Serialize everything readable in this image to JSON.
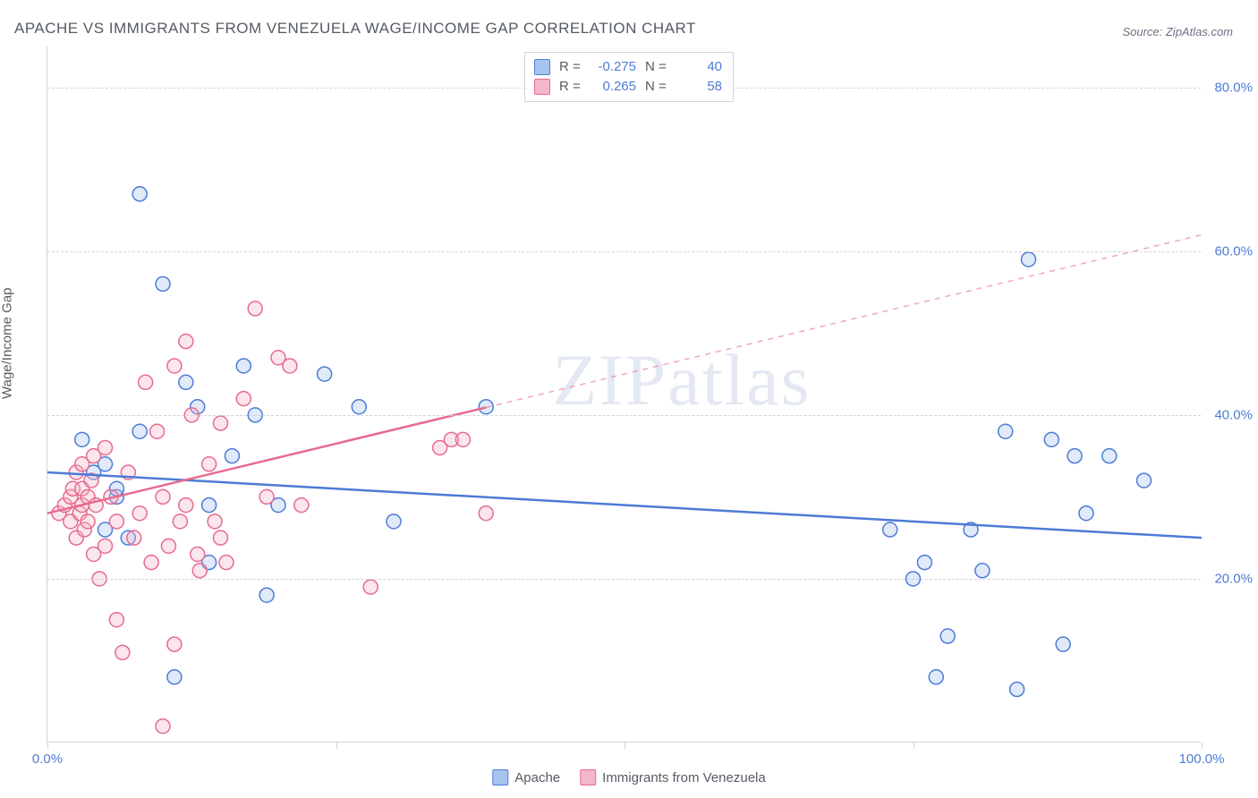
{
  "title": "APACHE VS IMMIGRANTS FROM VENEZUELA WAGE/INCOME GAP CORRELATION CHART",
  "source": "Source: ZipAtlas.com",
  "ylabel": "Wage/Income Gap",
  "watermark": "ZIPatlas",
  "chart": {
    "type": "scatter",
    "background_color": "#ffffff",
    "grid_color": "#d0d5db",
    "xlim": [
      0,
      100
    ],
    "ylim": [
      0,
      85
    ],
    "y_ticks": [
      20,
      40,
      60,
      80
    ],
    "x_ticks": [
      0,
      25,
      50,
      75,
      100
    ],
    "x_min_label": "0.0%",
    "x_max_label": "100.0%",
    "marker_radius": 8,
    "marker_stroke_width": 1.5,
    "marker_fill_opacity": 0.35,
    "trend_stroke_width": 2.5,
    "series": [
      {
        "name": "Apache",
        "color_stroke": "#4d7bd6",
        "color_fill": "#a7c4ef",
        "r_value": "-0.275",
        "n_value": "40",
        "trend": {
          "y_at_x0": 33,
          "y_at_x100": 25,
          "solid_until_x": 100
        },
        "points": [
          [
            3,
            37
          ],
          [
            4,
            33
          ],
          [
            5,
            34
          ],
          [
            5,
            26
          ],
          [
            6,
            30
          ],
          [
            6,
            31
          ],
          [
            7,
            25
          ],
          [
            8,
            38
          ],
          [
            8,
            67
          ],
          [
            10,
            56
          ],
          [
            11,
            8
          ],
          [
            12,
            44
          ],
          [
            13,
            41
          ],
          [
            14,
            22
          ],
          [
            14,
            29
          ],
          [
            16,
            35
          ],
          [
            17,
            46
          ],
          [
            18,
            40
          ],
          [
            19,
            18
          ],
          [
            20,
            29
          ],
          [
            24,
            45
          ],
          [
            27,
            41
          ],
          [
            30,
            27
          ],
          [
            38,
            41
          ],
          [
            73,
            26
          ],
          [
            75,
            20
          ],
          [
            76,
            22
          ],
          [
            77,
            8
          ],
          [
            78,
            13
          ],
          [
            80,
            26
          ],
          [
            81,
            21
          ],
          [
            83,
            38
          ],
          [
            84,
            6.5
          ],
          [
            85,
            59
          ],
          [
            87,
            37
          ],
          [
            88,
            12
          ],
          [
            89,
            35
          ],
          [
            90,
            28
          ],
          [
            92,
            35
          ],
          [
            95,
            32
          ]
        ]
      },
      {
        "name": "Immigrants from Venezuela",
        "color_stroke": "#e76a8f",
        "color_fill": "#f4b6c9",
        "r_value": "0.265",
        "n_value": "58",
        "trend": {
          "y_at_x0": 28,
          "y_at_x100": 62,
          "solid_until_x": 38
        },
        "points": [
          [
            1,
            28
          ],
          [
            1.5,
            29
          ],
          [
            2,
            30
          ],
          [
            2,
            27
          ],
          [
            2.2,
            31
          ],
          [
            2.5,
            25
          ],
          [
            2.5,
            33
          ],
          [
            2.8,
            28
          ],
          [
            3,
            29
          ],
          [
            3,
            34
          ],
          [
            3,
            31
          ],
          [
            3.2,
            26
          ],
          [
            3.5,
            30
          ],
          [
            3.5,
            27
          ],
          [
            3.8,
            32
          ],
          [
            4,
            35
          ],
          [
            4,
            23
          ],
          [
            4.2,
            29
          ],
          [
            4.5,
            20
          ],
          [
            5,
            24
          ],
          [
            5,
            36
          ],
          [
            5.5,
            30
          ],
          [
            6,
            15
          ],
          [
            6,
            27
          ],
          [
            6.5,
            11
          ],
          [
            7,
            33
          ],
          [
            7.5,
            25
          ],
          [
            8,
            28
          ],
          [
            8.5,
            44
          ],
          [
            9,
            22
          ],
          [
            9.5,
            38
          ],
          [
            10,
            2
          ],
          [
            10,
            30
          ],
          [
            10.5,
            24
          ],
          [
            11,
            46
          ],
          [
            11,
            12
          ],
          [
            11.5,
            27
          ],
          [
            12,
            49
          ],
          [
            12,
            29
          ],
          [
            12.5,
            40
          ],
          [
            13,
            23
          ],
          [
            13.2,
            21
          ],
          [
            14,
            34
          ],
          [
            14.5,
            27
          ],
          [
            15,
            39
          ],
          [
            15,
            25
          ],
          [
            15.5,
            22
          ],
          [
            17,
            42
          ],
          [
            18,
            53
          ],
          [
            19,
            30
          ],
          [
            20,
            47
          ],
          [
            21,
            46
          ],
          [
            22,
            29
          ],
          [
            28,
            19
          ],
          [
            34,
            36
          ],
          [
            35,
            37
          ],
          [
            36,
            37
          ],
          [
            38,
            28
          ]
        ]
      }
    ]
  },
  "bottom_legend": [
    {
      "label": "Apache",
      "color_stroke": "#4d7bd6",
      "color_fill": "#a7c4ef"
    },
    {
      "label": "Immigrants from Venezuela",
      "color_stroke": "#e76a8f",
      "color_fill": "#f4b6c9"
    }
  ]
}
